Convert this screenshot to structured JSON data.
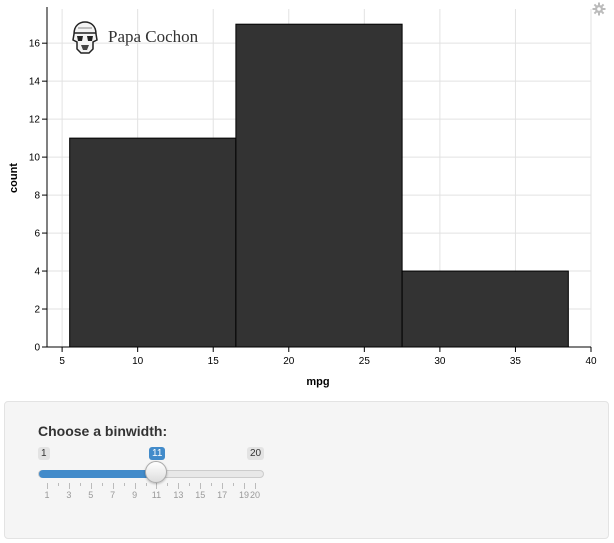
{
  "chart_data": {
    "type": "bar",
    "subtype": "histogram",
    "xlabel": "mpg",
    "ylabel": "count",
    "xlim": [
      4,
      40
    ],
    "ylim": [
      0,
      17.8
    ],
    "x_ticks": [
      5,
      10,
      15,
      20,
      25,
      30,
      35,
      40
    ],
    "y_ticks": [
      0,
      2,
      4,
      6,
      8,
      10,
      12,
      14,
      16
    ],
    "bins": [
      {
        "x0": 5.5,
        "x1": 16.5,
        "count": 11
      },
      {
        "x0": 16.5,
        "x1": 27.5,
        "count": 17
      },
      {
        "x0": 27.5,
        "x1": 38.5,
        "count": 4
      }
    ],
    "bar_color": "#333333",
    "grid": true
  },
  "logo": {
    "text": "Papa Cochon"
  },
  "control": {
    "label": "Choose a binwidth:",
    "min": 1,
    "max": 20,
    "value": 11,
    "min_label": "1",
    "max_label": "20",
    "value_label": "11",
    "grid_labels": [
      "1",
      "3",
      "5",
      "7",
      "9",
      "11",
      "13",
      "15",
      "17",
      "19",
      "20"
    ],
    "accent_color": "#428bca"
  }
}
